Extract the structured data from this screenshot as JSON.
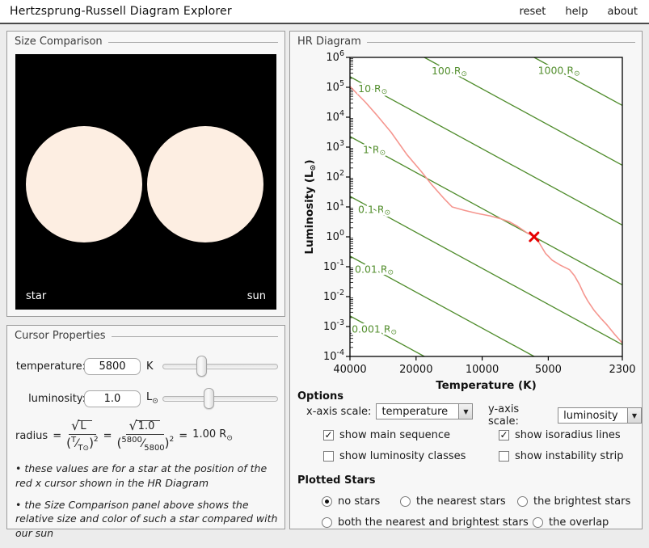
{
  "app": {
    "title": "Hertzsprung-Russell Diagram Explorer",
    "links": [
      "reset",
      "help",
      "about"
    ]
  },
  "size_comparison": {
    "title": "Size Comparison",
    "star_label": "star",
    "sun_label": "sun",
    "star_color": "#fdeee2",
    "background_color": "#000000"
  },
  "cursor_properties": {
    "title": "Cursor Properties",
    "temperature_label": "temperature:",
    "temperature_value": "5800",
    "temperature_unit": "K",
    "luminosity_label": "luminosity:",
    "luminosity_value": "1.0",
    "luminosity_unit_base": "L",
    "sun_symbol": "⊙",
    "formula": {
      "lhs": "radius",
      "eq": "=",
      "sqrt": "√",
      "sym_num": "L",
      "sym_den_top": "T",
      "sym_den_bot": "T",
      "slash": "⁄",
      "exponent": "2",
      "lparen": "(",
      "rparen": ")",
      "val_num": "1.0",
      "val_den_top": "5800",
      "val_den_bot": "5800",
      "result_value": "1.00",
      "result_unit_base": "R"
    },
    "notes": [
      "• these values are for a star at the position of the red x cursor shown in the HR Diagram",
      "• the Size Comparison panel above shows the relative size and color of such a star compared with our sun"
    ]
  },
  "hr_diagram": {
    "title": "HR Diagram",
    "options_label": "Options",
    "x_axis_label": "x-axis scale:",
    "x_axis_value": "temperature",
    "y_axis_label": "y-axis scale:",
    "y_axis_value": "luminosity",
    "select_arrow_glyph": "▼",
    "check_glyph": "✓",
    "checkboxes": [
      {
        "label": "show main sequence",
        "checked": true
      },
      {
        "label": "show isoradius lines",
        "checked": true
      },
      {
        "label": "show luminosity classes",
        "checked": false
      },
      {
        "label": "show instability strip",
        "checked": false
      }
    ],
    "plotted_stars_label": "Plotted Stars",
    "radios": [
      {
        "label": "no stars",
        "selected": true
      },
      {
        "label": "the nearest stars",
        "selected": false
      },
      {
        "label": "the brightest stars",
        "selected": false
      },
      {
        "label": "both the nearest and brightest stars",
        "selected": false
      },
      {
        "label": "the overlap",
        "selected": false
      }
    ]
  },
  "chart_data": {
    "type": "line",
    "xlabel": "Temperature (K)",
    "ylabel_base": "Luminosity (L",
    "ylabel_close": ")",
    "sun_symbol": "⊙",
    "x_scale": "log-reversed",
    "x_range": [
      40000,
      2300
    ],
    "x_ticks": [
      40000,
      20000,
      10000,
      5000,
      2300
    ],
    "y_scale": "log",
    "y_range_exp": [
      -4,
      6
    ],
    "y_ticks_exp": [
      6,
      5,
      4,
      3,
      2,
      1,
      0,
      -1,
      -2,
      -3,
      -4
    ],
    "y_base_label": "10",
    "grid": false,
    "series": [
      {
        "name": "main sequence",
        "color": "#f5968f",
        "points_T_logL": [
          [
            40000,
            5.03
          ],
          [
            34000,
            4.5
          ],
          [
            30000,
            4.05
          ],
          [
            26000,
            3.5
          ],
          [
            22000,
            2.75
          ],
          [
            19000,
            2.2
          ],
          [
            17000,
            1.75
          ],
          [
            15000,
            1.3
          ],
          [
            13700,
            1.0
          ],
          [
            12000,
            0.88
          ],
          [
            10500,
            0.78
          ],
          [
            9200,
            0.7
          ],
          [
            8200,
            0.6
          ],
          [
            7500,
            0.5
          ],
          [
            6900,
            0.35
          ],
          [
            6300,
            0.15
          ],
          [
            5800,
            0.0
          ],
          [
            5500,
            -0.2
          ],
          [
            5150,
            -0.55
          ],
          [
            4800,
            -0.78
          ],
          [
            4400,
            -0.95
          ],
          [
            4000,
            -1.1
          ],
          [
            3800,
            -1.3
          ],
          [
            3600,
            -1.6
          ],
          [
            3450,
            -1.9
          ],
          [
            3300,
            -2.15
          ],
          [
            3100,
            -2.45
          ],
          [
            2900,
            -2.7
          ],
          [
            2700,
            -2.95
          ],
          [
            2500,
            -3.25
          ],
          [
            2300,
            -3.55
          ]
        ]
      }
    ],
    "isoradius": {
      "color": "#4f8c2c",
      "label_color": "#548f2f",
      "unit_base": "R",
      "reference_T": 5800,
      "lines": [
        {
          "r": 1000,
          "label": "1000",
          "label_T": 4470
        },
        {
          "r": 100,
          "label": "100",
          "label_T": 14100
        },
        {
          "r": 10,
          "label": "10",
          "label_T": 31500
        },
        {
          "r": 1,
          "label": "1",
          "label_T": 31000
        },
        {
          "r": 0.1,
          "label": "0.1",
          "label_T": 31000
        },
        {
          "r": 0.01,
          "label": "0.01",
          "label_T": 31000
        },
        {
          "r": 0.001,
          "label": "0.001",
          "label_T": 31000
        }
      ]
    },
    "cursor": {
      "T": 5800,
      "L": 1.0,
      "color": "#e60000"
    }
  }
}
